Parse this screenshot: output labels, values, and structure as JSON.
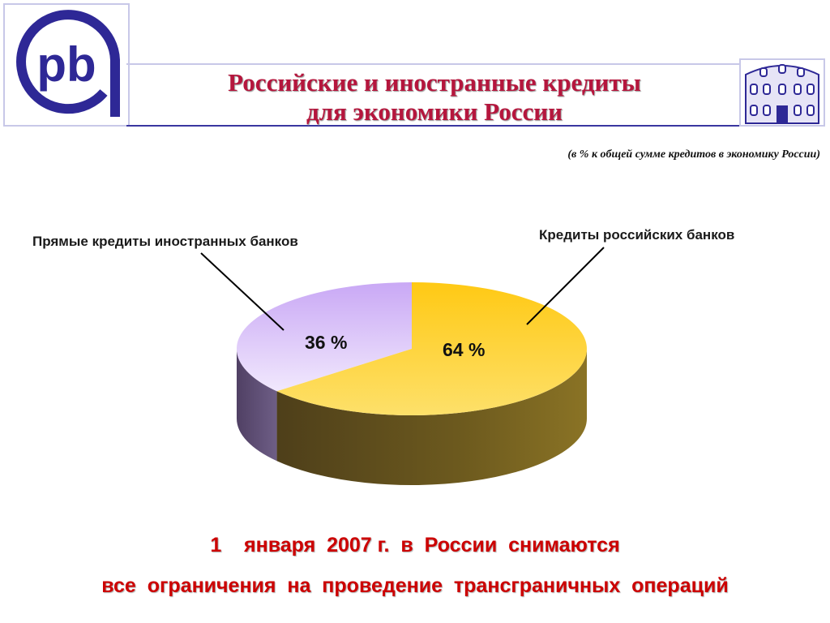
{
  "logos": {
    "left_text": "pb",
    "colors": {
      "brand": "#2e2896",
      "ring_light": "#d8d6f0"
    }
  },
  "header": {
    "title_line1": "Российские и иностранные кредиты",
    "title_line2": "для экономики России",
    "subtitle": "(в % к общей сумме кредитов в экономику России)",
    "title_color": "#b5163d"
  },
  "chart_data": {
    "type": "pie",
    "title": "Российские и иностранные кредиты для экономики России",
    "subtitle": "(в % к общей сумме кредитов в экономику России)",
    "style": "3d",
    "unit": "%",
    "slices": [
      {
        "label": "Прямые кредиты иностранных банков",
        "value": 36,
        "value_label": "36 %",
        "color": "#c9a8f5"
      },
      {
        "label": "Кредиты российских банков",
        "value": 64,
        "value_label": "64 %",
        "color": "#fcd232"
      }
    ]
  },
  "footer": {
    "line1": "1    января  2007 г.  в  России  снимаются",
    "line2": "все  ограничения  на  проведение  трансграничных  операций",
    "color": "#cc0000"
  }
}
